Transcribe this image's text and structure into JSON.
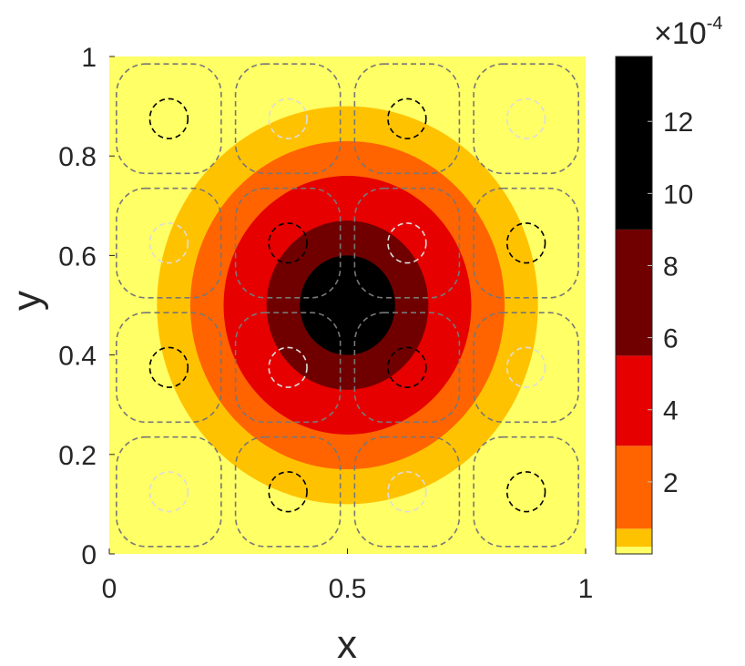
{
  "chart_data": {
    "type": "heatmap",
    "plot_style": "filled concentric contours with overlaid dashed contour lines",
    "xlabel": "x",
    "ylabel": "y",
    "xlim": [
      0,
      1
    ],
    "ylim": [
      0,
      1
    ],
    "x_ticks": [
      "0",
      "0.5",
      "1"
    ],
    "y_ticks": [
      "0",
      "0.2",
      "0.4",
      "0.6",
      "0.8",
      "1"
    ],
    "grid": false,
    "center": [
      0.5,
      0.5
    ],
    "filled_levels": [
      {
        "min": 0,
        "max": 2e-05,
        "color": "#ffff66"
      },
      {
        "min": 2e-05,
        "max": 7e-05,
        "color": "#ffc200"
      },
      {
        "min": 7e-05,
        "max": 0.0003,
        "color": "#ff6400"
      },
      {
        "min": 0.0003,
        "max": 0.00055,
        "color": "#e60000"
      },
      {
        "min": 0.00055,
        "max": 0.0009,
        "color": "#700000"
      },
      {
        "min": 0.0009,
        "max": 0.00138,
        "color": "#000000"
      }
    ],
    "filled_region_radii": [
      0.4,
      0.33,
      0.26,
      0.17,
      0.1
    ],
    "colorbar": {
      "range": [
        0,
        0.00138
      ],
      "multiplier": "×10",
      "exponent": "-4",
      "tick_values": [
        2,
        4,
        6,
        8,
        10,
        12
      ],
      "tick_labels": [
        "2",
        "4",
        "6",
        "8",
        "10",
        "12"
      ],
      "scale": 0.0001
    },
    "line_contours": {
      "grid": 4,
      "cell_centers": [
        0.125,
        0.375,
        0.625,
        0.875
      ],
      "outer_half_width": 0.11,
      "inner_radius": 0.04,
      "sign_pattern": [
        [
          -1,
          1,
          -1,
          1
        ],
        [
          1,
          -1,
          1,
          -1
        ],
        [
          -1,
          1,
          -1,
          1
        ],
        [
          1,
          -1,
          1,
          -1
        ]
      ],
      "outer_color": "#777777",
      "inner_colors": {
        "positive": "#000000",
        "negative": "#dddddd"
      }
    }
  }
}
